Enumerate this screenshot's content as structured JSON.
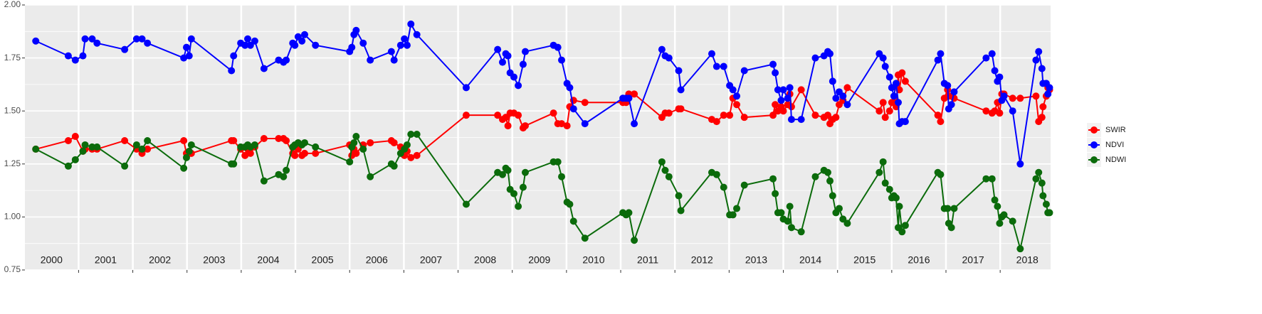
{
  "chart_data": {
    "type": "line",
    "x": [
      2000.21,
      2000.81,
      2000.94,
      2001.08,
      2001.12,
      2001.25,
      2001.34,
      2001.85,
      2002.07,
      2002.17,
      2002.27,
      2002.94,
      2002.99,
      2003.04,
      2003.08,
      2003.82,
      2003.86,
      2003.99,
      2004.07,
      2004.12,
      2004.17,
      2004.25,
      2004.42,
      2004.69,
      2004.78,
      2004.83,
      2004.95,
      2004.99,
      2005.05,
      2005.12,
      2005.17,
      2005.37,
      2006.0,
      2006.04,
      2006.08,
      2006.12,
      2006.25,
      2006.38,
      2006.77,
      2006.82,
      2006.94,
      2007.01,
      2007.06,
      2007.13,
      2007.24,
      2008.15,
      2008.73,
      2008.82,
      2008.88,
      2008.92,
      2008.96,
      2009.03,
      2009.11,
      2009.2,
      2009.24,
      2009.76,
      2009.84,
      2009.91,
      2010.01,
      2010.06,
      2010.13,
      2010.34,
      2011.04,
      2011.1,
      2011.15,
      2011.25,
      2011.76,
      2011.82,
      2011.89,
      2012.07,
      2012.11,
      2012.68,
      2012.77,
      2012.9,
      2013.01,
      2013.07,
      2013.14,
      2013.28,
      2013.81,
      2013.85,
      2013.9,
      2013.96,
      2014.0,
      2014.08,
      2014.12,
      2014.15,
      2014.33,
      2014.59,
      2014.75,
      2014.82,
      2014.86,
      2014.91,
      2014.97,
      2015.03,
      2015.1,
      2015.18,
      2015.77,
      2015.84,
      2015.88,
      2015.96,
      2016.0,
      2016.04,
      2016.08,
      2016.12,
      2016.14,
      2016.19,
      2016.25,
      2016.85,
      2016.9,
      2016.97,
      2017.03,
      2017.05,
      2017.1,
      2017.15,
      2017.74,
      2017.85,
      2017.9,
      2017.95,
      2017.99,
      2018.03,
      2018.07,
      2018.23,
      2018.37,
      2018.66,
      2018.71,
      2018.77,
      2018.79,
      2018.85,
      2018.88,
      2018.91
    ],
    "series": [
      {
        "name": "SWIR",
        "color": "#ff0000",
        "values": [
          1.32,
          1.36,
          1.38,
          1.31,
          1.32,
          1.32,
          1.32,
          1.36,
          1.32,
          1.3,
          1.32,
          1.36,
          1.3,
          1.3,
          1.3,
          1.36,
          1.36,
          1.32,
          1.29,
          1.32,
          1.3,
          1.33,
          1.37,
          1.37,
          1.37,
          1.36,
          1.3,
          1.29,
          1.32,
          1.29,
          1.3,
          1.3,
          1.34,
          1.29,
          1.32,
          1.3,
          1.34,
          1.35,
          1.36,
          1.35,
          1.33,
          1.29,
          1.31,
          1.28,
          1.29,
          1.48,
          1.48,
          1.46,
          1.47,
          1.43,
          1.49,
          1.49,
          1.48,
          1.42,
          1.43,
          1.49,
          1.44,
          1.44,
          1.43,
          1.52,
          1.55,
          1.54,
          1.54,
          1.54,
          1.58,
          1.58,
          1.47,
          1.49,
          1.49,
          1.51,
          1.51,
          1.46,
          1.45,
          1.48,
          1.48,
          1.56,
          1.53,
          1.47,
          1.48,
          1.53,
          1.5,
          1.52,
          1.5,
          1.53,
          1.58,
          1.52,
          1.6,
          1.48,
          1.47,
          1.48,
          1.44,
          1.46,
          1.47,
          1.53,
          1.55,
          1.61,
          1.5,
          1.54,
          1.47,
          1.5,
          1.54,
          1.54,
          1.52,
          1.67,
          1.6,
          1.68,
          1.64,
          1.48,
          1.45,
          1.56,
          1.6,
          1.57,
          1.57,
          1.56,
          1.5,
          1.49,
          1.5,
          1.54,
          1.49,
          1.58,
          1.58,
          1.56,
          1.56,
          1.57,
          1.45,
          1.47,
          1.52,
          1.57,
          1.61,
          1.6
        ]
      },
      {
        "name": "NDVI",
        "color": "#0000ff",
        "values": [
          1.83,
          1.76,
          1.74,
          1.76,
          1.84,
          1.84,
          1.82,
          1.79,
          1.84,
          1.84,
          1.82,
          1.75,
          1.8,
          1.76,
          1.84,
          1.69,
          1.76,
          1.82,
          1.81,
          1.84,
          1.81,
          1.83,
          1.7,
          1.74,
          1.73,
          1.74,
          1.82,
          1.81,
          1.85,
          1.83,
          1.86,
          1.81,
          1.78,
          1.8,
          1.86,
          1.88,
          1.82,
          1.74,
          1.78,
          1.74,
          1.81,
          1.84,
          1.81,
          1.91,
          1.86,
          1.61,
          1.79,
          1.73,
          1.77,
          1.76,
          1.68,
          1.66,
          1.62,
          1.72,
          1.78,
          1.81,
          1.8,
          1.74,
          1.63,
          1.61,
          1.51,
          1.44,
          1.56,
          1.56,
          1.56,
          1.44,
          1.79,
          1.76,
          1.75,
          1.69,
          1.6,
          1.77,
          1.71,
          1.71,
          1.62,
          1.6,
          1.57,
          1.69,
          1.72,
          1.68,
          1.6,
          1.55,
          1.6,
          1.56,
          1.61,
          1.46,
          1.46,
          1.75,
          1.76,
          1.78,
          1.77,
          1.64,
          1.56,
          1.59,
          1.57,
          1.53,
          1.77,
          1.75,
          1.71,
          1.66,
          1.61,
          1.57,
          1.63,
          1.54,
          1.44,
          1.45,
          1.45,
          1.74,
          1.77,
          1.63,
          1.62,
          1.51,
          1.53,
          1.59,
          1.75,
          1.77,
          1.69,
          1.64,
          1.66,
          1.55,
          1.57,
          1.5,
          1.25,
          1.74,
          1.78,
          1.7,
          1.63,
          1.63,
          1.58,
          1.61
        ]
      },
      {
        "name": "NDWI",
        "color": "#0b6b0b",
        "values": [
          1.32,
          1.24,
          1.27,
          1.31,
          1.34,
          1.33,
          1.33,
          1.24,
          1.34,
          1.32,
          1.36,
          1.23,
          1.28,
          1.31,
          1.34,
          1.25,
          1.25,
          1.33,
          1.33,
          1.34,
          1.33,
          1.34,
          1.17,
          1.2,
          1.19,
          1.22,
          1.33,
          1.34,
          1.35,
          1.34,
          1.35,
          1.33,
          1.26,
          1.33,
          1.35,
          1.38,
          1.32,
          1.19,
          1.25,
          1.24,
          1.3,
          1.32,
          1.34,
          1.39,
          1.39,
          1.06,
          1.21,
          1.2,
          1.23,
          1.22,
          1.13,
          1.11,
          1.05,
          1.14,
          1.21,
          1.26,
          1.26,
          1.19,
          1.07,
          1.06,
          0.98,
          0.9,
          1.02,
          1.01,
          1.02,
          0.89,
          1.26,
          1.22,
          1.19,
          1.1,
          1.03,
          1.21,
          1.2,
          1.14,
          1.01,
          1.01,
          1.04,
          1.15,
          1.18,
          1.11,
          1.02,
          1.02,
          0.99,
          0.98,
          1.05,
          0.95,
          0.93,
          1.19,
          1.22,
          1.21,
          1.17,
          1.1,
          1.02,
          1.04,
          0.99,
          0.97,
          1.21,
          1.26,
          1.16,
          1.13,
          1.09,
          1.1,
          1.09,
          0.95,
          1.05,
          0.93,
          0.96,
          1.21,
          1.2,
          1.04,
          1.04,
          0.97,
          0.95,
          1.04,
          1.18,
          1.18,
          1.08,
          1.05,
          0.97,
          1.0,
          1.01,
          0.98,
          0.85,
          1.18,
          1.21,
          1.16,
          1.1,
          1.06,
          1.02,
          1.02
        ]
      }
    ],
    "xlim": [
      2000.01,
      2018.93
    ],
    "xticks": [
      2001,
      2002,
      2003,
      2004,
      2005,
      2006,
      2007,
      2008,
      2009,
      2010,
      2011,
      2012,
      2013,
      2014,
      2015,
      2016,
      2017,
      2018
    ],
    "year_labels": [
      2000,
      2001,
      2002,
      2003,
      2004,
      2005,
      2006,
      2007,
      2008,
      2009,
      2010,
      2011,
      2012,
      2013,
      2014,
      2015,
      2016,
      2017,
      2018
    ],
    "ylim": [
      0.75,
      2
    ],
    "yticks": [
      0.75,
      {
        "value": 1,
        "label": "1.00"
      },
      1.25,
      {
        "value": 1.5,
        "label": "1.50"
      },
      1.75,
      {
        "value": 2,
        "label": "2.00"
      }
    ],
    "grid": true,
    "legend": "right"
  }
}
